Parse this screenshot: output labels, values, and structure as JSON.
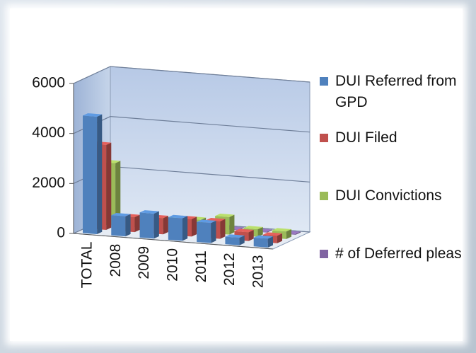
{
  "chart_data": {
    "type": "bar3d",
    "categories": [
      "TOTAL",
      "2008",
      "2009",
      "2010",
      "2011",
      "2012",
      "2013"
    ],
    "series": [
      {
        "name": "DUI Referred from GPD",
        "color": "#4f81bd",
        "values": [
          4700,
          800,
          1000,
          900,
          800,
          300,
          350
        ]
      },
      {
        "name": "DUI Filed",
        "color": "#c0504d",
        "values": [
          3400,
          600,
          650,
          700,
          700,
          350,
          300
        ]
      },
      {
        "name": "DUI Convictions",
        "color": "#9bbb59",
        "values": [
          2500,
          350,
          400,
          500,
          700,
          300,
          300
        ]
      },
      {
        "name": "# of Deferred pleas",
        "color": "#8064a2",
        "values": [
          50,
          30,
          30,
          30,
          30,
          30,
          30
        ]
      }
    ],
    "ylim": [
      0,
      6000
    ],
    "yticks": [
      0,
      2000,
      4000,
      6000
    ],
    "grid": true,
    "legend": "right"
  }
}
